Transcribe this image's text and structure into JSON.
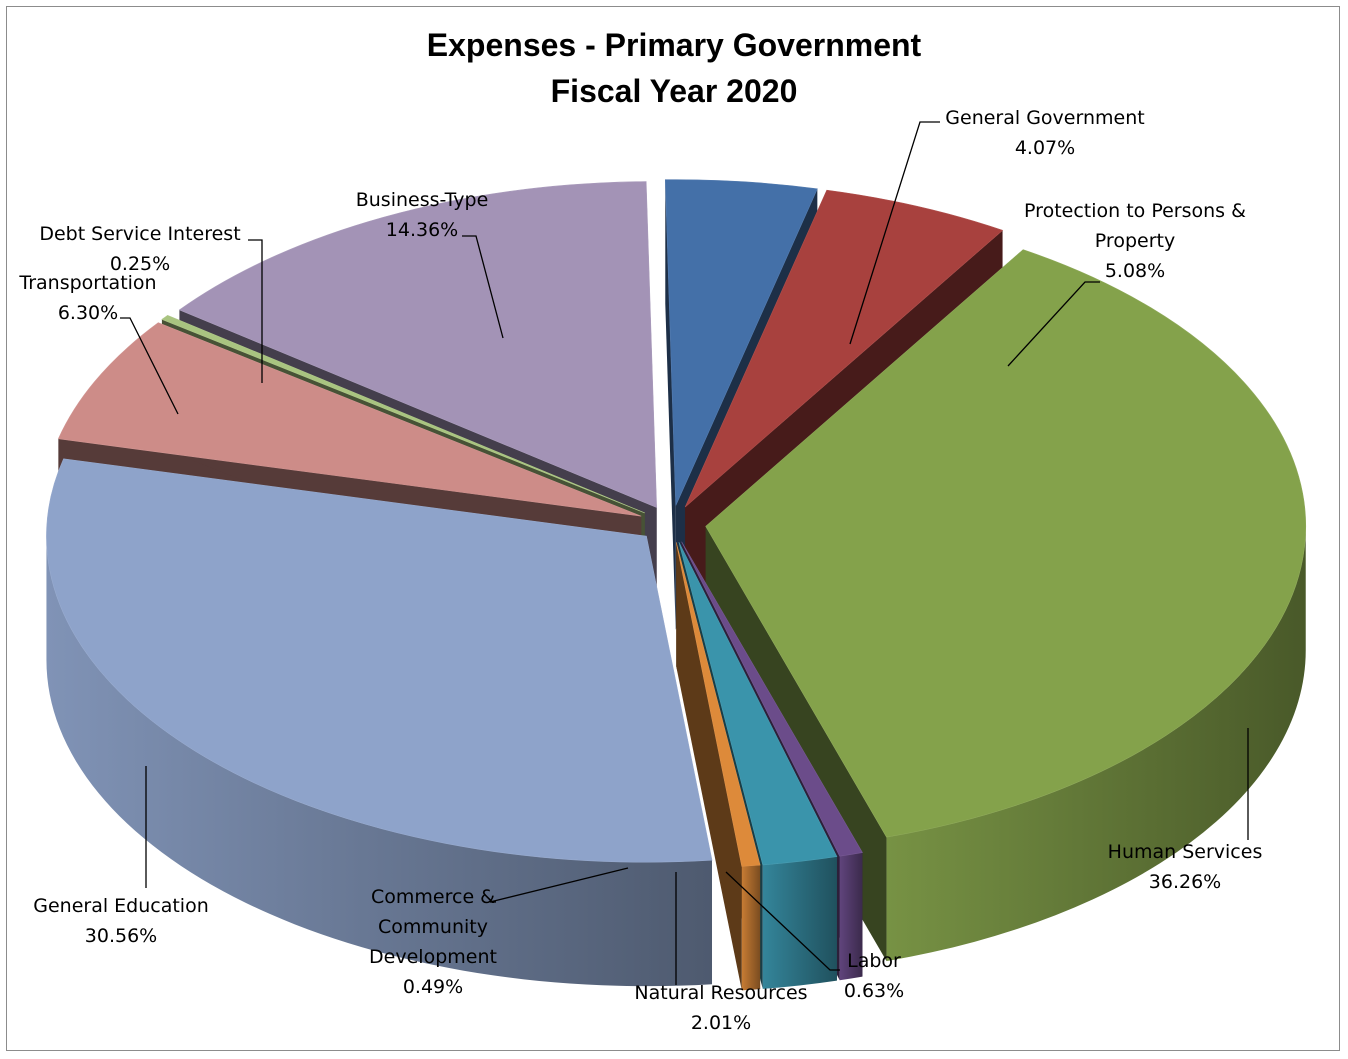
{
  "chart_data": {
    "type": "pie",
    "title_lines": [
      "Expenses - Primary Government",
      "Fiscal Year 2020"
    ],
    "slices": [
      {
        "label": [
          "General Government"
        ],
        "value": 4.07,
        "display": "4.07%",
        "color": "#4470A8"
      },
      {
        "label": [
          "Protection to Persons &",
          "Property"
        ],
        "value": 5.08,
        "display": "5.08%",
        "color": "#A8413E"
      },
      {
        "label": [
          "Human Services"
        ],
        "value": 36.26,
        "display": "36.26%",
        "color": "#84A24B"
      },
      {
        "label": [
          "Labor"
        ],
        "value": 0.63,
        "display": "0.63%",
        "color": "#6B4C8A"
      },
      {
        "label": [
          "Natural Resources"
        ],
        "value": 2.01,
        "display": "2.01%",
        "color": "#3A94AB"
      },
      {
        "label": [
          "Commerce &",
          "Community",
          "Development"
        ],
        "value": 0.49,
        "display": "0.49%",
        "color": "#DD8A3A"
      },
      {
        "label": [
          "General Education"
        ],
        "value": 30.56,
        "display": "30.56%",
        "color": "#8EA3CA"
      },
      {
        "label": [
          "Transportation"
        ],
        "value": 6.3,
        "display": "6.30%",
        "color": "#CD8C88"
      },
      {
        "label": [
          "Debt Service Interest"
        ],
        "value": 0.25,
        "display": "0.25%",
        "color": "#A9C480"
      },
      {
        "label": [
          "Business-Type"
        ],
        "value": 14.36,
        "display": "14.36%",
        "color": "#A393B6"
      }
    ]
  }
}
